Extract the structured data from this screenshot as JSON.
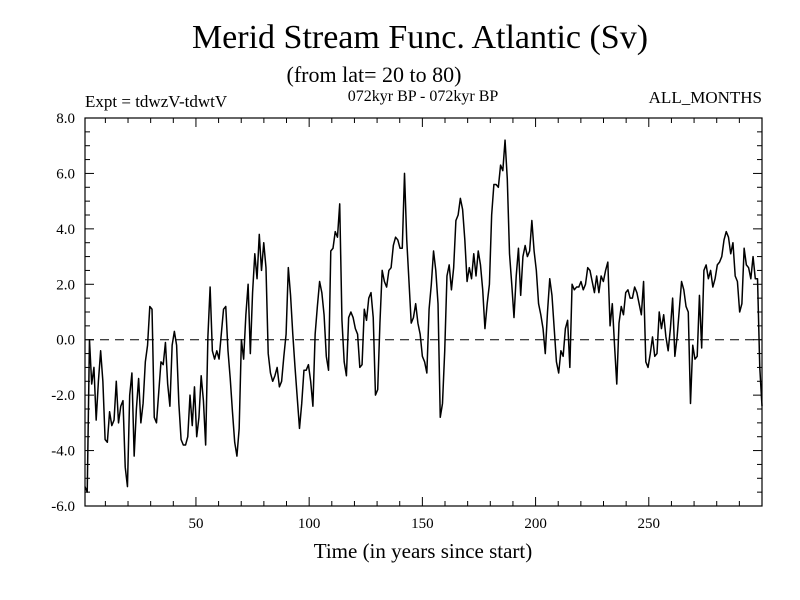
{
  "chart_data": {
    "type": "line",
    "title": "Merid Stream Func. Atlantic (Sv)",
    "subtitle": "(from lat= 20 to 80)",
    "experiment_label": "Expt = tdwzV-tdwtV",
    "period_label": "072kyr BP - 072kyr BP",
    "months_label": "ALL_MONTHS",
    "xlabel": "Time (in years since start)",
    "ylabel": "",
    "xlim": [
      1,
      300
    ],
    "ylim": [
      -6.0,
      8.0
    ],
    "x_ticks": [
      50,
      100,
      150,
      200,
      250
    ],
    "y_ticks": [
      -6.0,
      -4.0,
      -2.0,
      0.0,
      2.0,
      4.0,
      6.0,
      8.0
    ],
    "y_tick_labels": [
      "-6.0",
      "-4.0",
      "-2.0",
      "0.0",
      "2.0",
      "4.0",
      "6.0",
      "8.0"
    ],
    "reference_line": {
      "y": 0.0,
      "style": "dashed"
    },
    "grid": false,
    "series": [
      {
        "values": [
          -5.3,
          -5.5,
          0.0,
          -1.6,
          -1.0,
          -2.9,
          -1.5,
          -0.4,
          -1.5,
          -3.6,
          -3.7,
          -2.6,
          -3.1,
          -2.9,
          -1.5,
          -3.0,
          -2.4,
          -2.2,
          -4.6,
          -5.3,
          -2.0,
          -1.2,
          -4.2,
          -2.5,
          -1.4,
          -3.0,
          -2.3,
          -0.8,
          -0.2,
          1.2,
          1.1,
          -2.8,
          -3.0,
          -1.9,
          -0.8,
          -0.9,
          -0.1,
          -1.6,
          -2.4,
          -0.2,
          0.3,
          -0.2,
          -2.3,
          -3.6,
          -3.8,
          -3.8,
          -3.5,
          -2.0,
          -3.1,
          -1.7,
          -3.5,
          -2.8,
          -1.3,
          -2.2,
          -3.8,
          0.1,
          1.9,
          -0.4,
          -0.7,
          -0.4,
          -0.7,
          0.2,
          1.1,
          1.2,
          -0.4,
          -1.4,
          -2.6,
          -3.7,
          -4.2,
          -3.2,
          0.0,
          -0.7,
          0.9,
          2.0,
          -0.5,
          1.7,
          3.1,
          2.2,
          3.8,
          2.5,
          3.5,
          2.6,
          -0.5,
          -1.2,
          -1.5,
          -1.3,
          -1.0,
          -1.7,
          -1.5,
          -0.6,
          0.2,
          2.6,
          1.6,
          0.2,
          -1.0,
          -2.1,
          -3.2,
          -2.3,
          -1.1,
          -1.1,
          -0.9,
          -1.5,
          -2.4,
          0.2,
          1.2,
          2.1,
          1.7,
          0.9,
          -0.6,
          -1.1,
          3.2,
          3.3,
          3.9,
          3.7,
          4.9,
          0.7,
          -0.8,
          -1.3,
          0.8,
          1.0,
          0.8,
          0.4,
          0.2,
          -1.0,
          -0.9,
          1.1,
          0.7,
          1.5,
          1.7,
          0.8,
          -2.0,
          -1.8,
          0.6,
          2.5,
          2.1,
          1.9,
          2.5,
          2.6,
          3.4,
          3.7,
          3.6,
          3.3,
          3.3,
          6.0,
          3.6,
          2.1,
          0.6,
          0.8,
          1.3,
          0.6,
          0.2,
          -0.6,
          -0.8,
          -1.2,
          1.1,
          2.0,
          3.2,
          2.5,
          1.3,
          -2.8,
          -2.3,
          -0.4,
          2.3,
          2.7,
          1.8,
          2.6,
          4.3,
          4.5,
          5.1,
          4.7,
          3.6,
          2.1,
          2.6,
          2.2,
          3.1,
          2.3,
          3.2,
          2.7,
          1.8,
          0.4,
          1.3,
          2.0,
          4.5,
          5.6,
          5.6,
          5.5,
          6.3,
          6.1,
          7.2,
          5.8,
          3.1,
          2.0,
          0.8,
          2.3,
          3.3,
          1.6,
          3.0,
          3.4,
          3.0,
          3.2,
          4.3,
          3.2,
          2.5,
          1.3,
          0.9,
          0.4,
          -0.5,
          1.0,
          2.2,
          1.6,
          0.4,
          -0.8,
          -1.2,
          -0.4,
          -0.6,
          0.4,
          0.7,
          -1.0,
          2.0,
          1.8,
          1.9,
          1.9,
          2.1,
          1.8,
          2.0,
          2.6,
          2.5,
          2.1,
          1.7,
          2.3,
          1.7,
          2.3,
          2.1,
          2.5,
          2.8,
          0.5,
          1.3,
          -0.2,
          -1.6,
          0.6,
          1.2,
          0.9,
          1.7,
          1.8,
          1.5,
          1.5,
          1.9,
          1.7,
          1.3,
          0.9,
          2.1,
          -0.8,
          -1.0,
          -0.5,
          0.1,
          -0.6,
          -0.5,
          1.0,
          0.4,
          0.9,
          0.1,
          -0.4,
          0.4,
          1.5,
          -0.6,
          0.1,
          1.1,
          2.1,
          1.8,
          1.2,
          1.0,
          -2.3,
          -0.2,
          -0.7,
          -0.6,
          1.6,
          -0.3,
          2.5,
          2.7,
          2.2,
          2.5,
          1.9,
          2.2,
          2.7,
          2.8,
          3.0,
          3.6,
          3.9,
          3.7,
          3.1,
          3.5,
          2.3,
          2.1,
          1.0,
          1.3,
          3.3,
          2.7,
          2.6,
          2.2,
          3.0,
          2.2,
          2.2,
          -1.0,
          -2.4
        ]
      }
    ]
  }
}
